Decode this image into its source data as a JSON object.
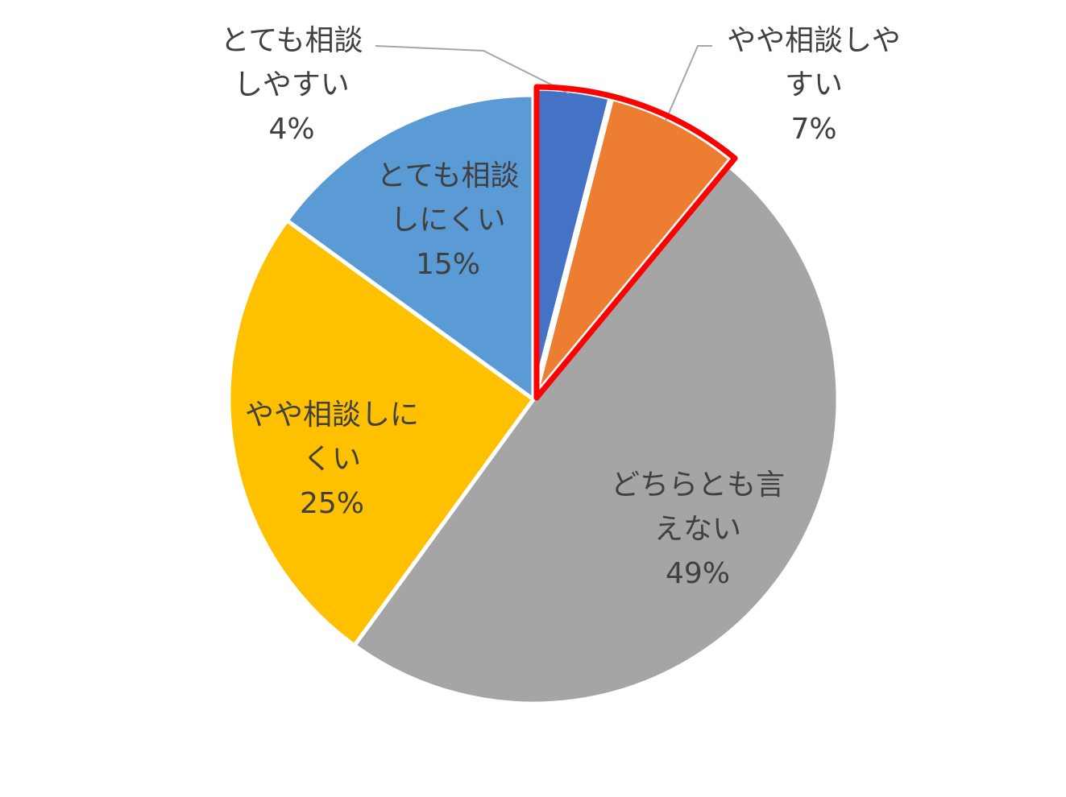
{
  "chart_data": {
    "type": "pie",
    "start_angle_deg": 0,
    "direction": "clockwise",
    "slices": [
      {
        "label_lines": [
          "とても相談",
          "しやすい"
        ],
        "pct_label": "4%",
        "value": 4,
        "color": "#4472C4",
        "highlighted": true
      },
      {
        "label_lines": [
          "やや相談しや",
          "すい"
        ],
        "pct_label": "7%",
        "value": 7,
        "color": "#ED7D31",
        "highlighted": true
      },
      {
        "label_lines": [
          "どちらとも言",
          "えない"
        ],
        "pct_label": "49%",
        "value": 49,
        "color": "#A5A5A5",
        "highlighted": false
      },
      {
        "label_lines": [
          "やや相談しに",
          "くい"
        ],
        "pct_label": "25%",
        "value": 25,
        "color": "#FFC000",
        "highlighted": false
      },
      {
        "label_lines": [
          "とても相談",
          "しにくい"
        ],
        "pct_label": "15%",
        "value": 15,
        "color": "#5B9BD5",
        "highlighted": false
      }
    ],
    "highlight_color": "#FF0000"
  }
}
